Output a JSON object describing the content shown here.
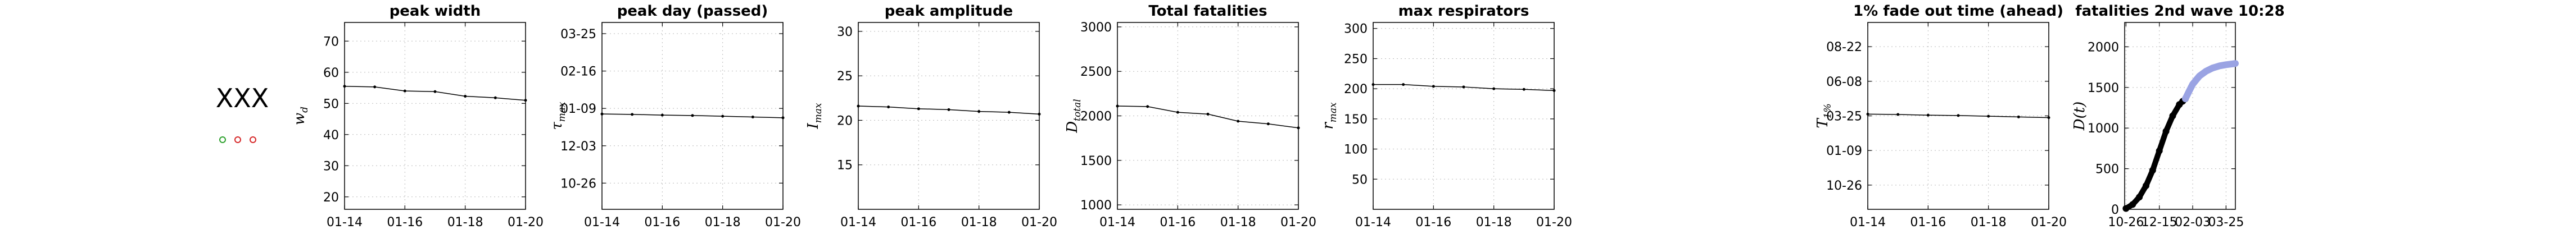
{
  "label_block": {
    "text": "XXX",
    "markers": [
      {
        "name": "green-circle-marker",
        "color": "#2ca02c"
      },
      {
        "name": "red-circle-marker-1",
        "color": "#d62728"
      },
      {
        "name": "red-circle-marker-2",
        "color": "#d62728"
      }
    ]
  },
  "chart_data": [
    {
      "type": "line",
      "title": "peak width",
      "ylabel": "w_d",
      "x": [
        "01-14",
        "01-15",
        "01-16",
        "01-17",
        "01-18",
        "01-19",
        "01-20"
      ],
      "x_ticks": [
        "01-14",
        "01-16",
        "01-18",
        "01-20"
      ],
      "y_ticks": [
        20,
        30,
        40,
        50,
        60,
        70
      ],
      "ylim": [
        16,
        76
      ],
      "series": [
        {
          "values": [
            55.5,
            55.3,
            54.0,
            53.8,
            52.3,
            51.8,
            51.0
          ]
        }
      ],
      "line_color": "#000000",
      "grid": true
    },
    {
      "type": "line",
      "title": "peak day (passed)",
      "ylabel": "τ_max",
      "x": [
        "01-14",
        "01-15",
        "01-16",
        "01-17",
        "01-18",
        "01-19",
        "01-20"
      ],
      "x_ticks": [
        "01-14",
        "01-16",
        "01-18",
        "01-20"
      ],
      "y_ticks": [
        "10-26",
        "12-03",
        "01-09",
        "02-16",
        "03-25"
      ],
      "y_tick_values": [
        0,
        1,
        2,
        3,
        4
      ],
      "ylim": [
        -0.7,
        4.3
      ],
      "series": [
        {
          "values": [
            1.85,
            1.84,
            1.82,
            1.81,
            1.79,
            1.77,
            1.75
          ]
        }
      ],
      "line_color": "#000000",
      "grid": true
    },
    {
      "type": "line",
      "title": "peak amplitude",
      "ylabel": "I_max",
      "x": [
        "01-14",
        "01-15",
        "01-16",
        "01-17",
        "01-18",
        "01-19",
        "01-20"
      ],
      "x_ticks": [
        "01-14",
        "01-16",
        "01-18",
        "01-20"
      ],
      "y_ticks": [
        15,
        20,
        25,
        30
      ],
      "ylim": [
        10,
        31
      ],
      "series": [
        {
          "values": [
            21.6,
            21.5,
            21.3,
            21.2,
            21.0,
            20.9,
            20.7
          ]
        }
      ],
      "line_color": "#000000",
      "grid": true
    },
    {
      "type": "line",
      "title": "Total fatalities",
      "ylabel": "D_total",
      "x": [
        "01-14",
        "01-15",
        "01-16",
        "01-17",
        "01-18",
        "01-19",
        "01-20"
      ],
      "x_ticks": [
        "01-14",
        "01-16",
        "01-18",
        "01-20"
      ],
      "y_ticks": [
        1000,
        1500,
        2000,
        2500,
        3000
      ],
      "ylim": [
        950,
        3050
      ],
      "series": [
        {
          "values": [
            2110,
            2105,
            2040,
            2020,
            1940,
            1910,
            1865
          ]
        }
      ],
      "line_color": "#000000",
      "grid": true
    },
    {
      "type": "line",
      "title": "max respirators",
      "ylabel": "r_max",
      "x": [
        "01-14",
        "01-15",
        "01-16",
        "01-17",
        "01-18",
        "01-19",
        "01-20"
      ],
      "x_ticks": [
        "01-14",
        "01-16",
        "01-18",
        "01-20"
      ],
      "y_ticks": [
        50,
        100,
        150,
        200,
        250,
        300
      ],
      "ylim": [
        0,
        310
      ],
      "series": [
        {
          "values": [
            207,
            207,
            204,
            203,
            200,
            199,
            197
          ]
        }
      ],
      "line_color": "#000000",
      "grid": true
    },
    {
      "type": "line",
      "title": "1% fade out time (ahead)",
      "ylabel": "T_1%",
      "x": [
        "01-14",
        "01-15",
        "01-16",
        "01-17",
        "01-18",
        "01-19",
        "01-20"
      ],
      "x_ticks": [
        "01-14",
        "01-16",
        "01-18",
        "01-20"
      ],
      "y_ticks": [
        "10-26",
        "01-09",
        "03-25",
        "06-08",
        "08-22"
      ],
      "y_tick_values": [
        0,
        1,
        2,
        3,
        4
      ],
      "ylim": [
        -0.7,
        4.7
      ],
      "series": [
        {
          "values": [
            2.05,
            2.04,
            2.02,
            2.01,
            1.99,
            1.97,
            1.95
          ]
        }
      ],
      "line_color": "#000000",
      "grid": true
    },
    {
      "type": "line",
      "title": "fatalities 2nd wave 10:28",
      "ylabel": "D(t)",
      "x_ticks": [
        "10-26",
        "12-15",
        "02-03",
        "03-25"
      ],
      "x_tick_values": [
        0,
        50,
        100,
        150
      ],
      "xlim": [
        -2,
        164
      ],
      "y_ticks": [
        0,
        500,
        1000,
        1500,
        2000
      ],
      "ylim": [
        0,
        2300
      ],
      "series": [
        {
          "style": "data-points",
          "color": "#000000",
          "x": [
            0,
            10,
            20,
            30,
            40,
            50,
            60,
            70,
            80,
            85,
            89
          ],
          "y": [
            10,
            60,
            150,
            290,
            480,
            720,
            960,
            1150,
            1290,
            1330,
            1360
          ]
        },
        {
          "style": "model-curve",
          "color": "#9aa3e3",
          "x": [
            89,
            95,
            100,
            110,
            120,
            130,
            140,
            150,
            160,
            164
          ],
          "y": [
            1360,
            1460,
            1540,
            1640,
            1700,
            1740,
            1765,
            1780,
            1790,
            1795
          ]
        }
      ],
      "grid": true
    }
  ]
}
